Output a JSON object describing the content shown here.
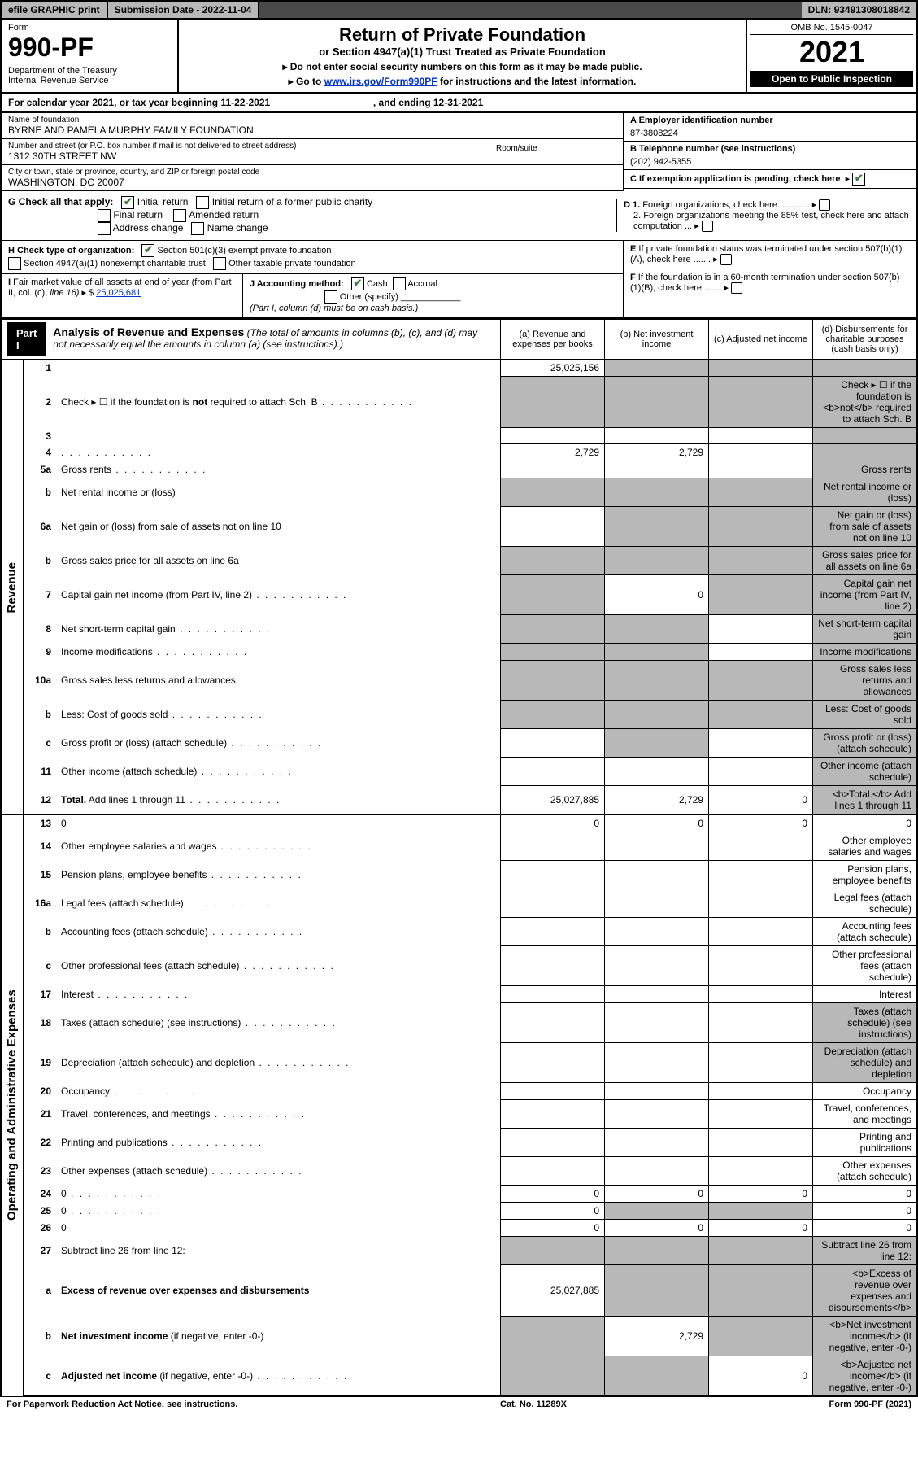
{
  "topbar": {
    "efile": "efile GRAPHIC print",
    "subdate_label": "Submission Date - ",
    "subdate": "2022-11-04",
    "dln_label": "DLN: ",
    "dln": "93491308018842"
  },
  "header": {
    "form_label": "Form",
    "form_number": "990-PF",
    "dept": "Department of the Treasury\nInternal Revenue Service",
    "title": "Return of Private Foundation",
    "subtitle": "or Section 4947(a)(1) Trust Treated as Private Foundation",
    "note1": "▸ Do not enter social security numbers on this form as it may be made public.",
    "note2_prefix": "▸ Go to ",
    "note2_link": "www.irs.gov/Form990PF",
    "note2_suffix": " for instructions and the latest information.",
    "omb": "OMB No. 1545-0047",
    "year": "2021",
    "inspection": "Open to Public Inspection"
  },
  "calyear": {
    "text_prefix": "For calendar year 2021, or tax year beginning ",
    "begin": "11-22-2021",
    "mid": " , and ending ",
    "end": "12-31-2021"
  },
  "info": {
    "name_label": "Name of foundation",
    "name": "BYRNE AND PAMELA MURPHY FAMILY FOUNDATION",
    "addr_label": "Number and street (or P.O. box number if mail is not delivered to street address)",
    "addr": "1312 30TH STREET NW",
    "room_label": "Room/suite",
    "city_label": "City or town, state or province, country, and ZIP or foreign postal code",
    "city": "WASHINGTON, DC  20007",
    "a_label": "A Employer identification number",
    "a_val": "87-3808224",
    "b_label": "B Telephone number (see instructions)",
    "b_val": "(202) 942-5355",
    "c_label": "C If exemption application is pending, check here",
    "d1_label": "D 1. Foreign organizations, check here.............",
    "d2_label": "2. Foreign organizations meeting the 85% test, check here and attach computation ...",
    "e_label": "E If private foundation status was terminated under section 507(b)(1)(A), check here .......",
    "f_label": "F If the foundation is in a 60-month termination under section 507(b)(1)(B), check here .......",
    "g_label": "G Check all that apply:",
    "g_opts": [
      "Initial return",
      "Initial return of a former public charity",
      "Final return",
      "Amended return",
      "Address change",
      "Name change"
    ],
    "h_label": "H Check type of organization:",
    "h_opts": [
      "Section 501(c)(3) exempt private foundation",
      "Section 4947(a)(1) nonexempt charitable trust",
      "Other taxable private foundation"
    ],
    "i_label": "I Fair market value of all assets at end of year (from Part II, col. (c), line 16) ▸ $",
    "i_val": "25,025,681",
    "j_label": "J Accounting method:",
    "j_opts": [
      "Cash",
      "Accrual",
      "Other (specify)"
    ],
    "j_note": "(Part I, column (d) must be on cash basis.)"
  },
  "part1": {
    "label": "Part I",
    "title": "Analysis of Revenue and Expenses",
    "title_note": "(The total of amounts in columns (b), (c), and (d) may not necessarily equal the amounts in column (a) (see instructions).)",
    "cols": {
      "a": "(a) Revenue and expenses per books",
      "b": "(b) Net investment income",
      "c": "(c) Adjusted net income",
      "d": "(d) Disbursements for charitable purposes (cash basis only)"
    }
  },
  "sections": {
    "revenue": "Revenue",
    "expenses": "Operating and Administrative Expenses"
  },
  "rows": [
    {
      "n": "1",
      "d": "",
      "a": "25,025,156",
      "b": "",
      "c": "",
      "shade": [
        "b",
        "c",
        "d"
      ]
    },
    {
      "n": "2",
      "d": "Check ▸ ☐ if the foundation is <b>not</b> required to attach Sch. B",
      "dots": true,
      "shade": [
        "a",
        "b",
        "c",
        "d"
      ]
    },
    {
      "n": "3",
      "d": "",
      "a": "",
      "b": "",
      "c": "",
      "shade": [
        "d"
      ]
    },
    {
      "n": "4",
      "d": "",
      "dots": true,
      "a": "2,729",
      "b": "2,729",
      "c": "",
      "shade": [
        "d"
      ]
    },
    {
      "n": "5a",
      "d": "Gross rents",
      "dots": true,
      "shade": [
        "d"
      ]
    },
    {
      "n": "b",
      "d": "Net rental income or (loss)",
      "shade": [
        "a",
        "b",
        "c",
        "d"
      ]
    },
    {
      "n": "6a",
      "d": "Net gain or (loss) from sale of assets not on line 10",
      "shade": [
        "b",
        "c",
        "d"
      ]
    },
    {
      "n": "b",
      "d": "Gross sales price for all assets on line 6a",
      "shade": [
        "a",
        "b",
        "c",
        "d"
      ]
    },
    {
      "n": "7",
      "d": "Capital gain net income (from Part IV, line 2)",
      "dots": true,
      "b": "0",
      "shade": [
        "a",
        "c",
        "d"
      ]
    },
    {
      "n": "8",
      "d": "Net short-term capital gain",
      "dots": true,
      "shade": [
        "a",
        "b",
        "d"
      ]
    },
    {
      "n": "9",
      "d": "Income modifications",
      "dots": true,
      "shade": [
        "a",
        "b",
        "d"
      ]
    },
    {
      "n": "10a",
      "d": "Gross sales less returns and allowances",
      "shade": [
        "a",
        "b",
        "c",
        "d"
      ]
    },
    {
      "n": "b",
      "d": "Less: Cost of goods sold",
      "dots": true,
      "shade": [
        "a",
        "b",
        "c",
        "d"
      ]
    },
    {
      "n": "c",
      "d": "Gross profit or (loss) (attach schedule)",
      "dots": true,
      "shade": [
        "b",
        "d"
      ]
    },
    {
      "n": "11",
      "d": "Other income (attach schedule)",
      "dots": true,
      "shade": [
        "d"
      ]
    },
    {
      "n": "12",
      "d": "<b>Total.</b> Add lines 1 through 11",
      "dots": true,
      "a": "25,027,885",
      "b": "2,729",
      "c": "0",
      "shade": [
        "d"
      ]
    }
  ],
  "exp_rows": [
    {
      "n": "13",
      "d": "0",
      "a": "0",
      "b": "0",
      "c": "0"
    },
    {
      "n": "14",
      "d": "Other employee salaries and wages",
      "dots": true
    },
    {
      "n": "15",
      "d": "Pension plans, employee benefits",
      "dots": true
    },
    {
      "n": "16a",
      "d": "Legal fees (attach schedule)",
      "dots": true
    },
    {
      "n": "b",
      "d": "Accounting fees (attach schedule)",
      "dots": true
    },
    {
      "n": "c",
      "d": "Other professional fees (attach schedule)",
      "dots": true
    },
    {
      "n": "17",
      "d": "Interest",
      "dots": true
    },
    {
      "n": "18",
      "d": "Taxes (attach schedule) (see instructions)",
      "dots": true,
      "shade": [
        "d"
      ]
    },
    {
      "n": "19",
      "d": "Depreciation (attach schedule) and depletion",
      "dots": true,
      "shade": [
        "d"
      ]
    },
    {
      "n": "20",
      "d": "Occupancy",
      "dots": true
    },
    {
      "n": "21",
      "d": "Travel, conferences, and meetings",
      "dots": true
    },
    {
      "n": "22",
      "d": "Printing and publications",
      "dots": true
    },
    {
      "n": "23",
      "d": "Other expenses (attach schedule)",
      "dots": true
    },
    {
      "n": "24",
      "d": "0",
      "dots": true,
      "a": "0",
      "b": "0",
      "c": "0"
    },
    {
      "n": "25",
      "d": "0",
      "dots": true,
      "a": "0",
      "shade": [
        "b",
        "c"
      ]
    },
    {
      "n": "26",
      "d": "0",
      "a": "0",
      "b": "0",
      "c": "0"
    },
    {
      "n": "27",
      "d": "Subtract line 26 from line 12:",
      "shade": [
        "a",
        "b",
        "c",
        "d"
      ]
    },
    {
      "n": "a",
      "d": "<b>Excess of revenue over expenses and disbursements</b>",
      "a": "25,027,885",
      "shade": [
        "b",
        "c",
        "d"
      ]
    },
    {
      "n": "b",
      "d": "<b>Net investment income</b> (if negative, enter -0-)",
      "b": "2,729",
      "shade": [
        "a",
        "c",
        "d"
      ]
    },
    {
      "n": "c",
      "d": "<b>Adjusted net income</b> (if negative, enter -0-)",
      "dots": true,
      "c": "0",
      "shade": [
        "a",
        "b",
        "d"
      ]
    }
  ],
  "footer": {
    "left": "For Paperwork Reduction Act Notice, see instructions.",
    "mid": "Cat. No. 11289X",
    "right": "Form 990-PF (2021)"
  }
}
